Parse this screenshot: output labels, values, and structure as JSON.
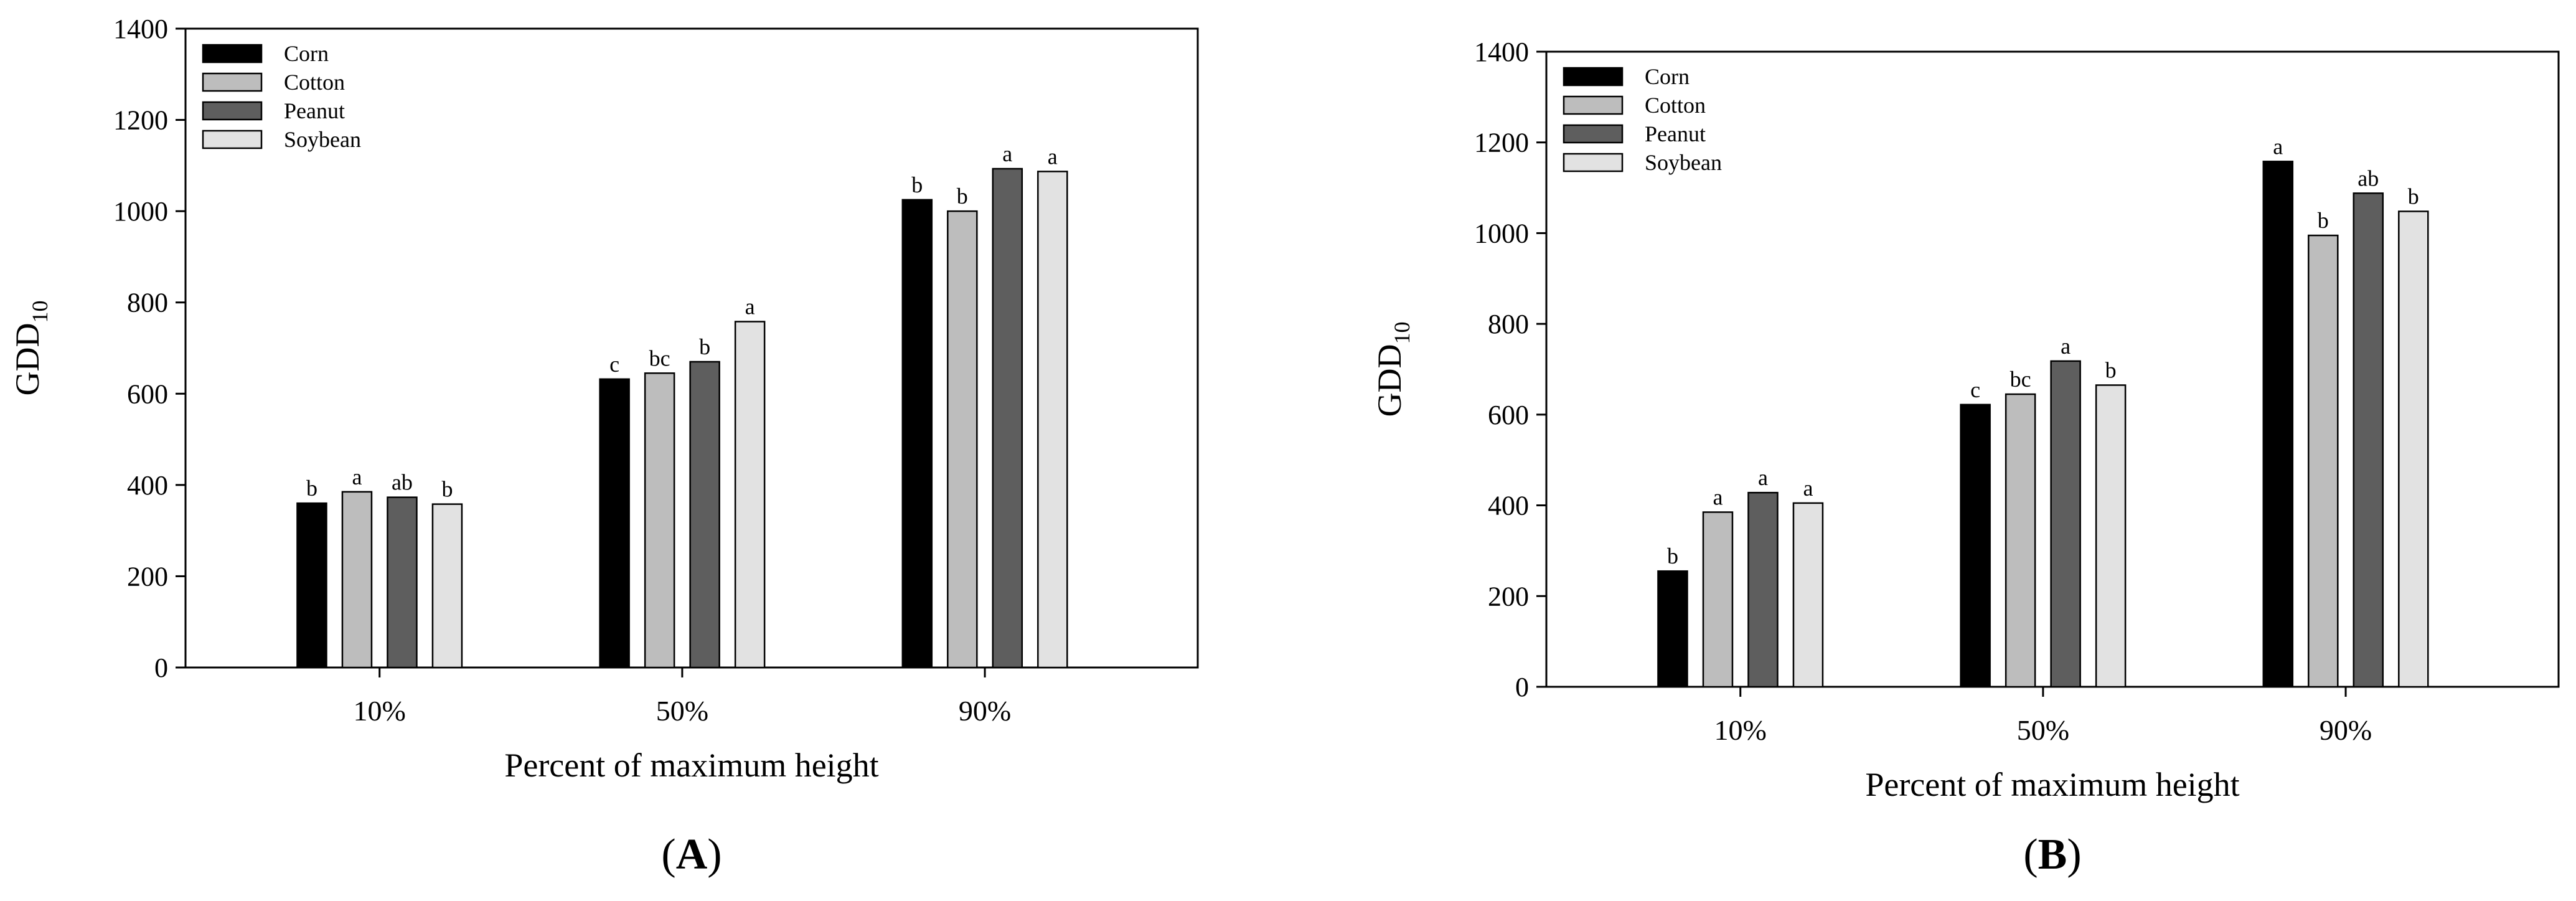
{
  "chart_data": [
    {
      "type": "bar",
      "panel_label": "A",
      "title": "",
      "xlabel": "Percent of maximum height",
      "ylabel_main": "GDD",
      "ylabel_sub": "10",
      "ylim": [
        0,
        1400
      ],
      "yticks": [
        "0",
        "200",
        "400",
        "600",
        "800",
        "1000",
        "1200",
        "1400"
      ],
      "categories": [
        "10%",
        "50%",
        "90%"
      ],
      "legend_position": "top-left",
      "grid": false,
      "series": [
        {
          "name": "Corn",
          "color": "#000000",
          "values": [
            360,
            632,
            1025
          ],
          "letters": [
            "b",
            "c",
            "b"
          ]
        },
        {
          "name": "Cotton",
          "color": "#bdbdbd",
          "values": [
            385,
            645,
            1000
          ],
          "letters": [
            "a",
            "bc",
            "b"
          ]
        },
        {
          "name": "Peanut",
          "color": "#5e5e5e",
          "values": [
            373,
            670,
            1093
          ],
          "letters": [
            "ab",
            "b",
            "a"
          ]
        },
        {
          "name": "Soybean",
          "color": "#e2e2e2",
          "values": [
            358,
            758,
            1087
          ],
          "letters": [
            "b",
            "a",
            "a"
          ]
        }
      ]
    },
    {
      "type": "bar",
      "panel_label": "B",
      "title": "",
      "xlabel": "Percent of maximum height",
      "ylabel_main": "GDD",
      "ylabel_sub": "10",
      "ylim": [
        0,
        1400
      ],
      "yticks": [
        "0",
        "200",
        "400",
        "600",
        "800",
        "1000",
        "1200",
        "1400"
      ],
      "categories": [
        "10%",
        "50%",
        "90%"
      ],
      "legend_position": "top-left",
      "grid": false,
      "series": [
        {
          "name": "Corn",
          "color": "#000000",
          "values": [
            255,
            622,
            1158
          ],
          "letters": [
            "b",
            "c",
            "a"
          ]
        },
        {
          "name": "Cotton",
          "color": "#bdbdbd",
          "values": [
            385,
            645,
            995
          ],
          "letters": [
            "a",
            "bc",
            "b"
          ]
        },
        {
          "name": "Peanut",
          "color": "#5e5e5e",
          "values": [
            428,
            718,
            1088
          ],
          "letters": [
            "a",
            "a",
            "ab"
          ]
        },
        {
          "name": "Soybean",
          "color": "#e2e2e2",
          "values": [
            405,
            665,
            1048
          ],
          "letters": [
            "a",
            "b",
            "b"
          ]
        }
      ]
    }
  ]
}
